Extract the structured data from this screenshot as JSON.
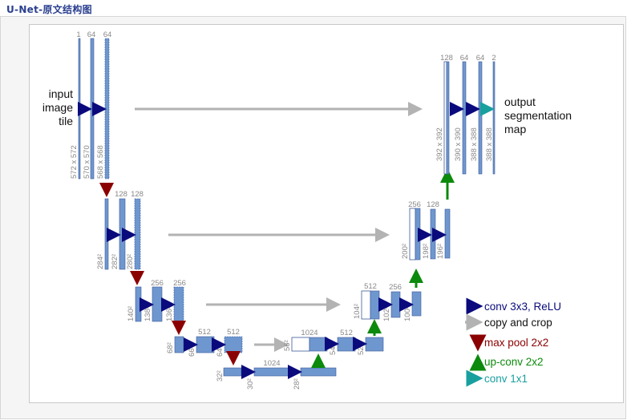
{
  "header": {
    "title": "U-Net-原文结构图"
  },
  "colors": {
    "fmap": "#6f97cf",
    "fmap_border": "#3c5a9a",
    "conv": "#0a0a7d",
    "copy": "#b3b3b3",
    "pool": "#8b0000",
    "upconv": "#0c8a0c",
    "conv1x1": "#1a9f9f"
  },
  "labels": {
    "input_line1": "input",
    "input_line2": "image",
    "input_line3": "tile",
    "output_line1": "output",
    "output_line2": "segmentation",
    "output_line3": "map"
  },
  "channels": {
    "l1": [
      "1",
      "64",
      "64"
    ],
    "l2": [
      "128",
      "128"
    ],
    "l3": [
      "256",
      "256"
    ],
    "l4": [
      "512",
      "512"
    ],
    "l5": [
      "1024"
    ],
    "r4": [
      "1024",
      "512"
    ],
    "r3": [
      "512",
      "256"
    ],
    "r2": [
      "256",
      "128"
    ],
    "r1": [
      "128",
      "64",
      "64",
      "2"
    ]
  },
  "sizes": {
    "l1": [
      "572 x 572",
      "570 x 570",
      "568 x 568"
    ],
    "l2": [
      "284²",
      "282²",
      "280²"
    ],
    "l3": [
      "140²",
      "138²",
      "136²"
    ],
    "l4": [
      "68²",
      "66²",
      "64²"
    ],
    "l5": [
      "32²",
      "30²",
      "28²"
    ],
    "r4": [
      "56²",
      "54²",
      "52²"
    ],
    "r3": [
      "104²",
      "102²",
      "100²"
    ],
    "r2": [
      "200²",
      "198²",
      "196²"
    ],
    "r1": [
      "392 x 392",
      "390 x 390",
      "388 x 388",
      "388 x 388"
    ]
  },
  "legend": {
    "conv": "conv 3x3, ReLU",
    "copy": "copy and crop",
    "pool": "max pool 2x2",
    "upconv": "up-conv 2x2",
    "conv1x1": "conv 1x1"
  }
}
